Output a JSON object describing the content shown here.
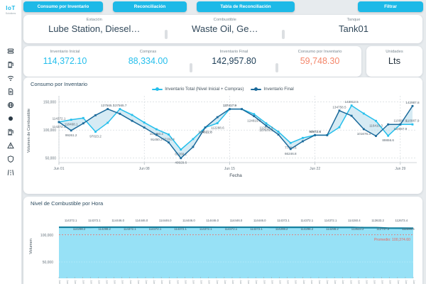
{
  "colors": {
    "accent": "#1db9e7",
    "cyan_series": "#25bfec",
    "dark_series": "#1b6a9b",
    "between_fill": "#aed7ea",
    "area_fill": "#85dcf4",
    "area_line": "#15809f",
    "mean_red": "#f0635a",
    "navy_value": "#1b3c55",
    "orange_value": "#f4866a"
  },
  "sidebar": {
    "logo_top": "IoT",
    "logo_sub": "Solutions",
    "icons": [
      "layers-icon",
      "fuel-pump-icon",
      "wifi-icon",
      "document-icon",
      "globe-icon",
      "record-icon",
      "fuel-dispenser-icon",
      "alert-triangle-icon",
      "shield-icon",
      "road-icon"
    ]
  },
  "nav": {
    "tabs": [
      {
        "label": "Consumo por Inventario"
      },
      {
        "label": "Reconciliación"
      },
      {
        "label": "Tabla de Reconciliación"
      }
    ],
    "filter_label": "Filtrar"
  },
  "fields": {
    "estacion": {
      "label": "Estación",
      "value": "Lube Station, Diesel…"
    },
    "combustible": {
      "label": "Combustible",
      "value": "Waste Oil, Ge…"
    },
    "tanque": {
      "label": "Tanque",
      "value": "Tank01"
    }
  },
  "stats": {
    "items": [
      {
        "label": "Inventario Inicial",
        "value": "114,372.10",
        "color": "#25bfec"
      },
      {
        "label": "Compras",
        "value": "88,334.00",
        "color": "#25bfec"
      },
      {
        "label": "Inventario Final",
        "value": "142,957.80",
        "color": "#1b3c55"
      },
      {
        "label": "Consumo por Inventario",
        "value": "59,748.30",
        "color": "#f4866a"
      }
    ],
    "unidades": {
      "label": "Unidades",
      "value": "Lts"
    }
  },
  "chart_data": [
    {
      "type": "line",
      "title": "Consumo por Inventario",
      "xlabel": "Fecha",
      "ylabel": "Volumen de Combustible",
      "ylim": [
        42000,
        156000
      ],
      "y_ticks": [
        {
          "v": 150000,
          "label": "150,000"
        },
        {
          "v": 100000,
          "label": "100,000"
        },
        {
          "v": 50000,
          "label": "50,000"
        }
      ],
      "x_ticks": [
        {
          "pos": 0,
          "label": "Jun 01"
        },
        {
          "pos": 7,
          "label": "Jun 08"
        },
        {
          "pos": 14,
          "label": "Jun 15"
        },
        {
          "pos": 21,
          "label": "Jun 22"
        },
        {
          "pos": 28,
          "label": "Jun 29"
        }
      ],
      "grid": true,
      "legend_position": "top-center",
      "series": [
        {
          "name": "Inventario Total (Nivel Inicial + Compras)",
          "color": "#25bfec",
          "values": [
            114372.1,
            118468.1,
            121500,
            97023.2,
            113000,
            137565.7,
            127000,
            113500,
            101450.2,
            92192.4,
            65268.2,
            84000,
            104622.6,
            112288.6,
            137417.9,
            137417.9,
            128500,
            112034.3,
            97000,
            77094.6,
            86000,
            90972.8,
            90972.8,
            105000,
            143812.5,
            129500,
            116410.3,
            89856.6,
            110087.9,
            110087.9
          ],
          "labels": [
            "114372.1",
            "118468.1",
            null,
            "97023.2",
            null,
            "137565.7",
            null,
            null,
            "101450.2",
            "92192.4",
            "65268.2",
            null,
            "104622.6",
            "112288.6",
            "137417.9",
            null,
            null,
            "112034.3",
            null,
            "77094.6",
            null,
            "90972.8",
            null,
            null,
            "143812.5",
            null,
            "116410.3",
            "89856.6",
            "110087.9",
            "110087.9"
          ]
        },
        {
          "name": "Inventario Final",
          "color": "#1b6a9b",
          "values": [
            114372.1,
            99261.2,
            112000,
            126500,
            137565.7,
            129000,
            116500,
            104500,
            91450.2,
            78000,
            49929.6,
            70000,
            104622.8,
            123000,
            137417.9,
            137417.9,
            124819,
            107678.9,
            92000,
            66246.8,
            80000,
            90972.6,
            90972.6,
            134758.5,
            125500,
            101676.3,
            89490,
            110087.9,
            110087.9,
            142957.8
          ],
          "labels": [
            "114372.1",
            "99261.2",
            null,
            null,
            "137565.7",
            null,
            null,
            null,
            "91450.2",
            null,
            "49929.6",
            null,
            "104622.8",
            null,
            "137417.9",
            null,
            "124819.0",
            "107678.9",
            null,
            "66246.8",
            null,
            "90972.6",
            null,
            "134758.5",
            null,
            "101676.3",
            null,
            null,
            "110087.9",
            "142957.8"
          ]
        }
      ]
    },
    {
      "type": "area",
      "title": "Nivel de Combustible por Hora",
      "ylabel": "Volumen",
      "y_ticks": [
        {
          "v": 100000,
          "label": "100,000"
        },
        {
          "v": 50000,
          "label": "50,000"
        }
      ],
      "mean": {
        "value": 100374.6,
        "label": "Promedio: 100,374.60"
      },
      "values": [
        114372.1,
        114372.1,
        114298.2,
        114372.1,
        114446,
        114446,
        114446,
        114446,
        114446,
        114446,
        114446,
        114446,
        114446,
        114372.1,
        114372.1,
        114372.1,
        114372.1,
        114372.1,
        114298.2,
        114298.2,
        114298.2,
        114372.1,
        114372.1,
        114150.4,
        114150.4,
        113633.2,
        113633.2,
        112747.3,
        112673.4,
        112599.6
      ],
      "labels_row1": [
        "114372.1",
        "114372.1",
        "114446.0",
        "114446.0",
        "114446.0",
        "114446.0",
        "114446.0",
        "114446.0",
        "114446.0",
        "114372.1",
        "114372.1",
        "114372.1",
        "114150.4",
        "113633.2",
        "112673.4"
      ],
      "labels_row2": [
        "114298.2",
        "114298.2",
        "114372.1",
        "114372.1",
        "114372.1",
        "114372.1",
        "114372.1",
        "114372.1",
        "114298.2",
        "114298.2",
        "114298.2",
        "113633.2",
        "112747.3",
        "112599.6"
      ],
      "x_axis_dense_labels": {
        "repeat": 46,
        "text": "Jun"
      }
    }
  ]
}
